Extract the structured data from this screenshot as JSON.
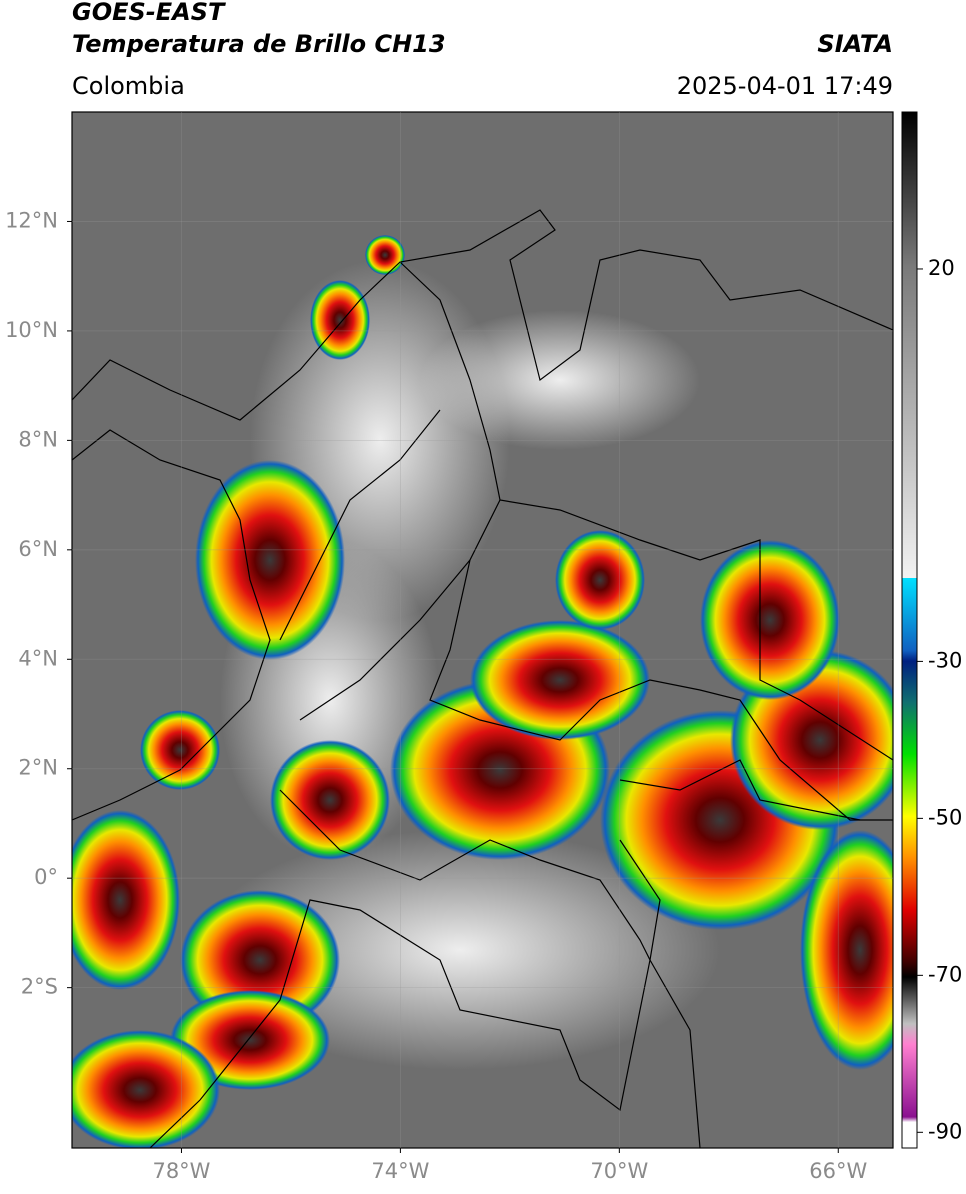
{
  "header": {
    "title": "GOES-EAST",
    "subtitle": "Temperatura de Brillo CH13",
    "source": "SIATA",
    "region": "Colombia",
    "datetime": "2025-04-01 17:49"
  },
  "map": {
    "xlim": [
      -80,
      -65
    ],
    "ylim": [
      -4.93,
      14
    ],
    "xticks": [
      {
        "value": -78,
        "label": "78°W"
      },
      {
        "value": -74,
        "label": "74°W"
      },
      {
        "value": -70,
        "label": "70°W"
      },
      {
        "value": -66,
        "label": "66°W"
      }
    ],
    "yticks": [
      {
        "value": 12,
        "label": "12°N"
      },
      {
        "value": 10,
        "label": "10°N"
      },
      {
        "value": 8,
        "label": "8°N"
      },
      {
        "value": 6,
        "label": "6°N"
      },
      {
        "value": 4,
        "label": "4°N"
      },
      {
        "value": 2,
        "label": "2°N"
      },
      {
        "value": 0,
        "label": "0°"
      },
      {
        "value": -2,
        "label": "2°S"
      }
    ]
  },
  "colorbar": {
    "lim": [
      -92,
      40
    ],
    "ticks": [
      20,
      -30,
      -50,
      -70,
      -90
    ]
  }
}
